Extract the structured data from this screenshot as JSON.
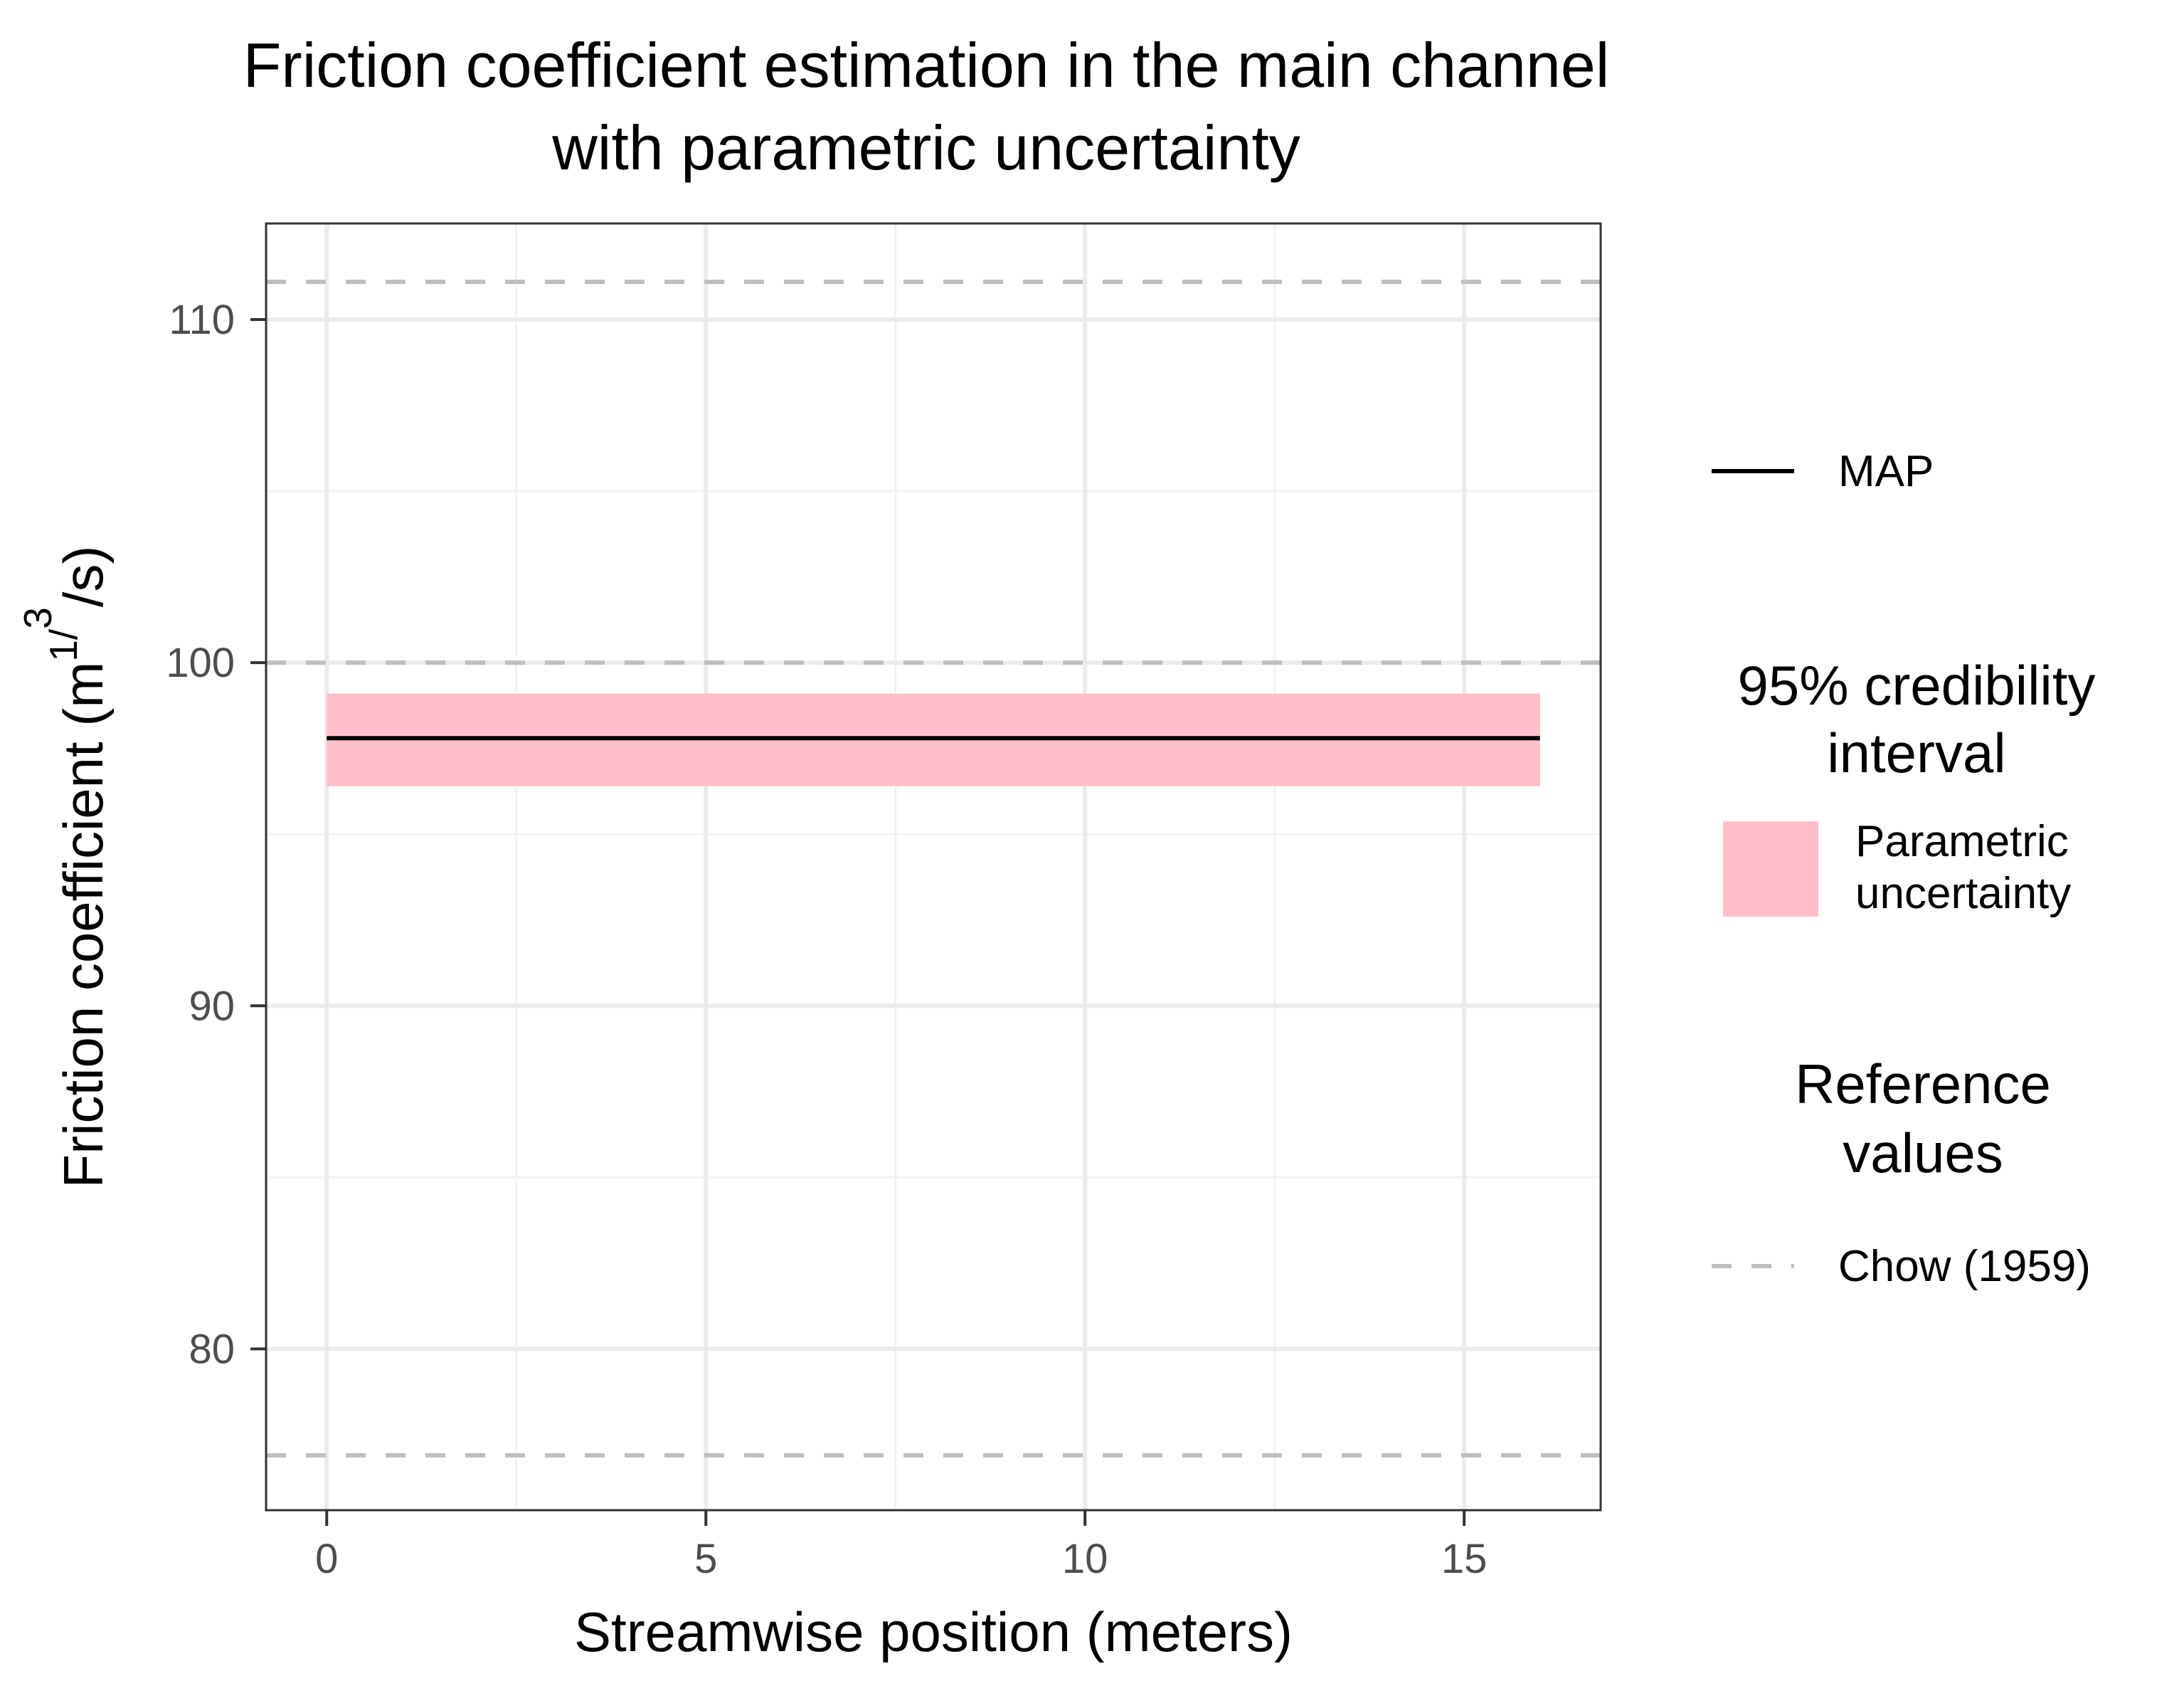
{
  "colors": {
    "map_line": "#000000",
    "interval_fill": "#ffc0cb",
    "reference_line": "#bebebe",
    "grid_major": "#ebebeb",
    "grid_minor": "#f2f2f2",
    "panel_border": "#333333"
  },
  "chart_data": {
    "type": "line",
    "title": [
      "Friction coefficient estimation in the main channel",
      "with parametric uncertainty"
    ],
    "xlabel": "Streamwise position (meters)",
    "ylabel_main": "Friction coefficient (m",
    "ylabel_sup1": "1",
    "ylabel_slash": "/",
    "ylabel_sup2": "3",
    "ylabel_end": "/s)",
    "xlim": [
      -0.8,
      16.8
    ],
    "ylim": [
      75.3,
      112.8
    ],
    "x_ticks": [
      0,
      5,
      10,
      15
    ],
    "x_tick_labels": [
      "0",
      "5",
      "10",
      "15"
    ],
    "x_minor": [
      2.5,
      7.5,
      12.5
    ],
    "y_ticks": [
      80,
      90,
      100,
      110
    ],
    "y_tick_labels": [
      "80",
      "90",
      "100",
      "110"
    ],
    "y_minor": [
      85,
      95,
      105
    ],
    "grid": true,
    "map": {
      "x": [
        0,
        16
      ],
      "y": [
        97.8,
        97.8
      ]
    },
    "interval": {
      "x": [
        0,
        16
      ],
      "lower": 96.4,
      "upper": 99.1
    },
    "reference_values": [
      76.9,
      100,
      111.1
    ],
    "legend": {
      "position": "right",
      "map_label": "MAP",
      "interval_title": [
        "95% credibility",
        "interval"
      ],
      "interval_label": [
        "Parametric",
        "uncertainty"
      ],
      "reference_title": [
        "Reference",
        "values"
      ],
      "reference_label": "Chow (1959)"
    }
  }
}
